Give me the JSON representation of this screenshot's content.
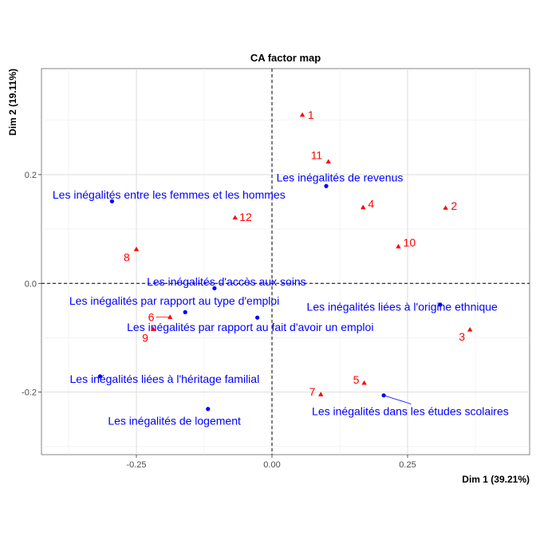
{
  "chart_data": {
    "type": "scatter",
    "title": "CA factor map",
    "xlabel": "Dim 1 (39.21%)",
    "ylabel": "Dim 2 (19.11%)",
    "xlim": [
      -0.425,
      0.475
    ],
    "ylim": [
      -0.315,
      0.395
    ],
    "xticks": [
      -0.25,
      0,
      0.25
    ],
    "xtick_labels": [
      "-0.25",
      "0.00",
      "0.25"
    ],
    "yticks": [
      -0.2,
      0,
      0.2
    ],
    "ytick_labels": [
      "-0.2",
      "0.0",
      "0.2"
    ],
    "grid": true,
    "reference_lines": {
      "x": 0,
      "y": 0,
      "style": "dashed"
    },
    "colors": {
      "columns": "#0000ff",
      "rows": "#ff0000"
    },
    "series": [
      {
        "marker": "circle",
        "color": "#0000ff",
        "points": [
          {
            "label": "Les inégalités de revenus",
            "x": 0.1,
            "y": 0.179,
            "lx": 0.125,
            "ly": 0.195,
            "anchor": "middle"
          },
          {
            "label": "Les inégalités entre les femmes et les hommes",
            "x": -0.295,
            "y": 0.151,
            "lx": -0.19,
            "ly": 0.163,
            "anchor": "middle"
          },
          {
            "label": "Les inégalités d'accès aux soins",
            "x": -0.106,
            "y": -0.009,
            "lx": -0.084,
            "ly": 0.003,
            "anchor": "middle"
          },
          {
            "label": "Les inégalités par rapport au type d'emploi",
            "x": -0.16,
            "y": -0.053,
            "lx": -0.18,
            "ly": -0.032,
            "anchor": "middle"
          },
          {
            "label": "Les inégalités liées à l'origine ethnique",
            "x": 0.31,
            "y": -0.039,
            "lx": 0.24,
            "ly": -0.043,
            "anchor": "middle"
          },
          {
            "label": "Les inégalités par rapport au fait d'avoir un emploi",
            "x": -0.027,
            "y": -0.063,
            "lx": -0.04,
            "ly": -0.08,
            "anchor": "middle"
          },
          {
            "label": "Les inégalités liées à l'héritage familial",
            "x": -0.317,
            "y": -0.171,
            "lx": -0.198,
            "ly": -0.176,
            "anchor": "middle"
          },
          {
            "label": "Les inégalités de logement",
            "x": -0.118,
            "y": -0.231,
            "lx": -0.18,
            "ly": -0.253,
            "anchor": "middle"
          },
          {
            "label": "Les inégalités dans les études scolaires",
            "x": 0.206,
            "y": -0.206,
            "lx": 0.255,
            "ly": -0.235,
            "anchor": "middle",
            "leader": true
          }
        ]
      },
      {
        "marker": "triangle",
        "color": "#ff0000",
        "points": [
          {
            "label": "1",
            "x": 0.056,
            "y": 0.31,
            "lx": 0.066,
            "ly": 0.31,
            "anchor": "start"
          },
          {
            "label": "11",
            "x": 0.104,
            "y": 0.224,
            "lx": 0.093,
            "ly": 0.236,
            "anchor": "end"
          },
          {
            "label": "2",
            "x": 0.32,
            "y": 0.139,
            "lx": 0.33,
            "ly": 0.143,
            "anchor": "start"
          },
          {
            "label": "4",
            "x": 0.168,
            "y": 0.14,
            "lx": 0.177,
            "ly": 0.146,
            "anchor": "start"
          },
          {
            "label": "12",
            "x": -0.068,
            "y": 0.121,
            "lx": -0.06,
            "ly": 0.122,
            "anchor": "start"
          },
          {
            "label": "10",
            "x": 0.233,
            "y": 0.068,
            "lx": 0.242,
            "ly": 0.075,
            "anchor": "start"
          },
          {
            "label": "8",
            "x": -0.25,
            "y": 0.063,
            "lx": -0.262,
            "ly": 0.048,
            "anchor": "end"
          },
          {
            "label": "6",
            "x": -0.188,
            "y": -0.062,
            "lx": -0.217,
            "ly": -0.062,
            "anchor": "end",
            "leader": true
          },
          {
            "label": "9",
            "x": -0.219,
            "y": -0.084,
            "lx": -0.228,
            "ly": -0.1,
            "anchor": "end"
          },
          {
            "label": "3",
            "x": 0.365,
            "y": -0.085,
            "lx": 0.356,
            "ly": -0.098,
            "anchor": "end"
          },
          {
            "label": "5",
            "x": 0.17,
            "y": -0.183,
            "lx": 0.161,
            "ly": -0.177,
            "anchor": "end"
          },
          {
            "label": "7",
            "x": 0.09,
            "y": -0.204,
            "lx": 0.08,
            "ly": -0.199,
            "anchor": "end"
          }
        ]
      }
    ]
  }
}
